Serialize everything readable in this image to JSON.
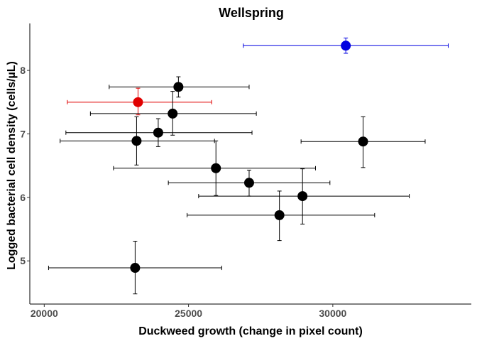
{
  "chart_data": {
    "type": "scatter",
    "title": "Wellspring",
    "xlabel": "Duckweed growth (change in pixel count)",
    "ylabel": "Logged bacterial cell density (cells/µL)",
    "xlim": [
      19500,
      34800
    ],
    "ylim": [
      4.32,
      8.74
    ],
    "x_ticks": [
      20000,
      25000,
      30000
    ],
    "y_ticks": [
      5,
      6,
      7,
      8
    ],
    "grid": false,
    "colors": {
      "default": "#000000",
      "red": "#e00000",
      "blue": "#0000e0"
    },
    "points": [
      {
        "x": 30450,
        "y": 8.39,
        "xmin": 26900,
        "xmax": 34000,
        "ymin": 8.27,
        "ymax": 8.51,
        "color": "blue"
      },
      {
        "x": 24650,
        "y": 7.74,
        "xmin": 22250,
        "xmax": 27100,
        "ymin": 7.58,
        "ymax": 7.9,
        "color": "default"
      },
      {
        "x": 23250,
        "y": 7.5,
        "xmin": 20800,
        "xmax": 25800,
        "ymin": 7.3,
        "ymax": 7.72,
        "color": "red"
      },
      {
        "x": 24450,
        "y": 7.32,
        "xmin": 21600,
        "xmax": 27350,
        "ymin": 6.98,
        "ymax": 7.67,
        "color": "default"
      },
      {
        "x": 23950,
        "y": 7.02,
        "xmin": 20750,
        "xmax": 27200,
        "ymin": 6.8,
        "ymax": 7.24,
        "color": "default"
      },
      {
        "x": 23200,
        "y": 6.89,
        "xmin": 20550,
        "xmax": 25900,
        "ymin": 6.51,
        "ymax": 7.27,
        "color": "default"
      },
      {
        "x": 31050,
        "y": 6.88,
        "xmin": 28900,
        "xmax": 33200,
        "ymin": 6.47,
        "ymax": 7.27,
        "color": "default"
      },
      {
        "x": 25950,
        "y": 6.46,
        "xmin": 22400,
        "xmax": 29400,
        "ymin": 6.03,
        "ymax": 6.89,
        "color": "default"
      },
      {
        "x": 27100,
        "y": 6.23,
        "xmin": 24300,
        "xmax": 29900,
        "ymin": 6.02,
        "ymax": 6.43,
        "color": "default"
      },
      {
        "x": 28950,
        "y": 6.02,
        "xmin": 25350,
        "xmax": 32650,
        "ymin": 5.58,
        "ymax": 6.45,
        "color": "default"
      },
      {
        "x": 28150,
        "y": 5.72,
        "xmin": 24950,
        "xmax": 31450,
        "ymin": 5.32,
        "ymax": 6.1,
        "color": "default"
      },
      {
        "x": 23150,
        "y": 4.89,
        "xmin": 20150,
        "xmax": 26150,
        "ymin": 4.48,
        "ymax": 5.31,
        "color": "default"
      }
    ]
  }
}
